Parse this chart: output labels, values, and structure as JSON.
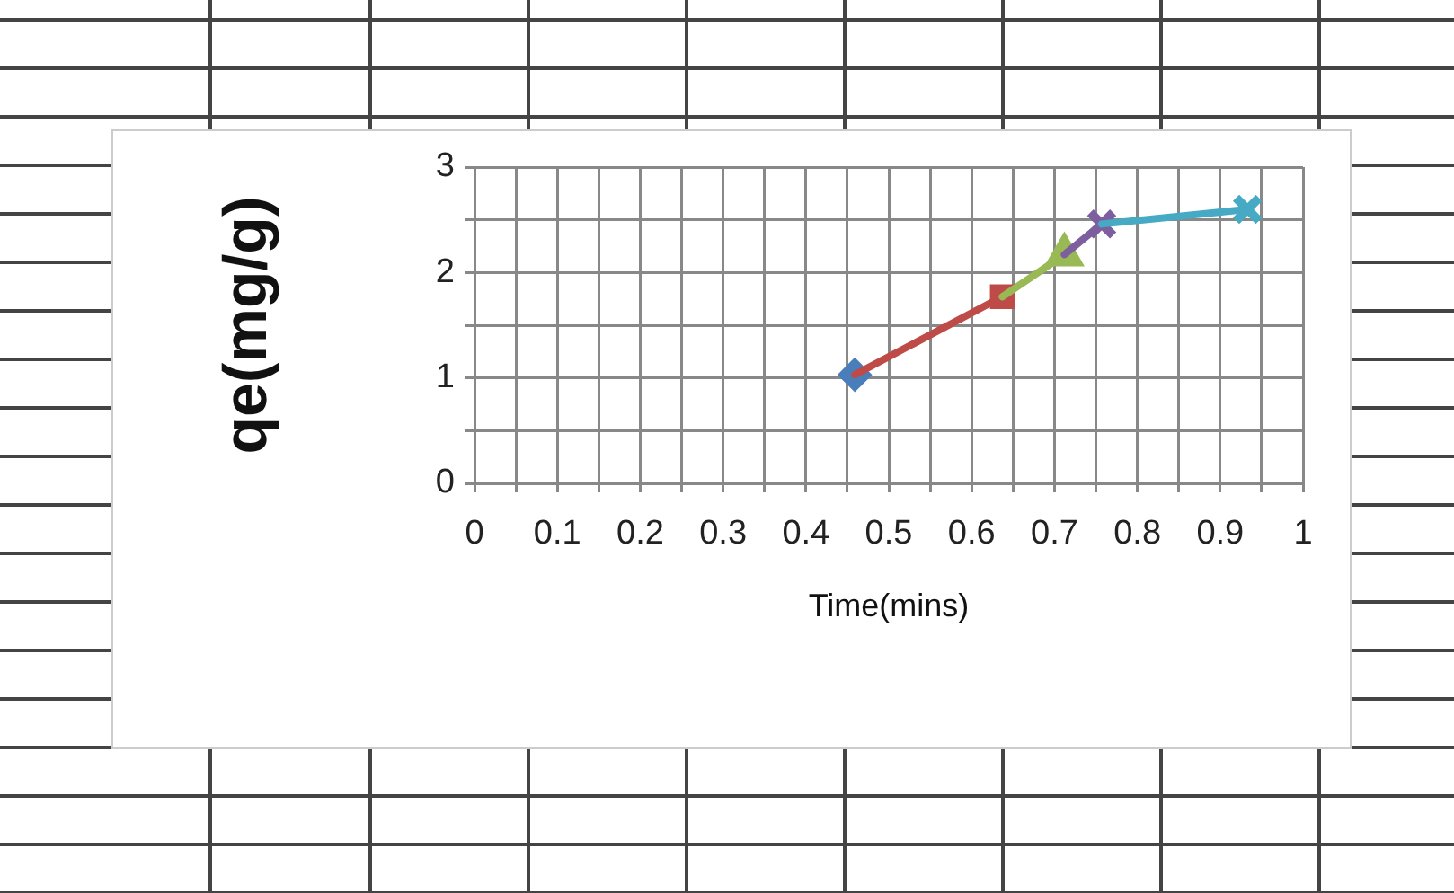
{
  "chart_data": {
    "type": "line",
    "xlabel": "Time(mins)",
    "ylabel": "qe(mg/g)",
    "x": [
      0.459,
      0.637,
      0.712,
      0.757,
      0.933
    ],
    "series": [
      {
        "values": [
          1.03,
          null,
          null,
          null,
          null
        ],
        "color": "#4a7ebb",
        "marker": "diamond"
      },
      {
        "values": [
          1.03,
          1.77,
          null,
          null,
          null
        ],
        "color": "#be4b48",
        "marker": "square"
      },
      {
        "values": [
          null,
          1.77,
          2.17,
          null,
          null
        ],
        "color": "#98b954",
        "marker": "triangle"
      },
      {
        "values": [
          null,
          null,
          2.17,
          2.46,
          null
        ],
        "color": "#7d5fa0",
        "marker": "cross"
      },
      {
        "values": [
          null,
          null,
          null,
          2.46,
          2.6
        ],
        "color": "#46aac5",
        "marker": "cross"
      }
    ],
    "xlim": [
      0,
      1
    ],
    "xticks": [
      0,
      {
        "value": 0.05,
        "label": null
      },
      0.1,
      {
        "value": 0.15,
        "label": null
      },
      0.2,
      {
        "value": 0.25,
        "label": null
      },
      0.3,
      {
        "value": 0.35,
        "label": null
      },
      0.4,
      {
        "value": 0.45,
        "label": null
      },
      0.5,
      {
        "value": 0.55,
        "label": null
      },
      0.6,
      {
        "value": 0.65,
        "label": null
      },
      0.7,
      {
        "value": 0.75,
        "label": null
      },
      0.8,
      {
        "value": 0.85,
        "label": null
      },
      0.9,
      {
        "value": 0.95,
        "label": null
      },
      1
    ],
    "ylim": [
      0,
      3
    ],
    "yticks": [
      0,
      {
        "value": 0.5,
        "label": null
      },
      1,
      {
        "value": 1.5,
        "label": null
      },
      2,
      {
        "value": 2.5,
        "label": null
      },
      3
    ],
    "grid": true,
    "legend": false
  }
}
